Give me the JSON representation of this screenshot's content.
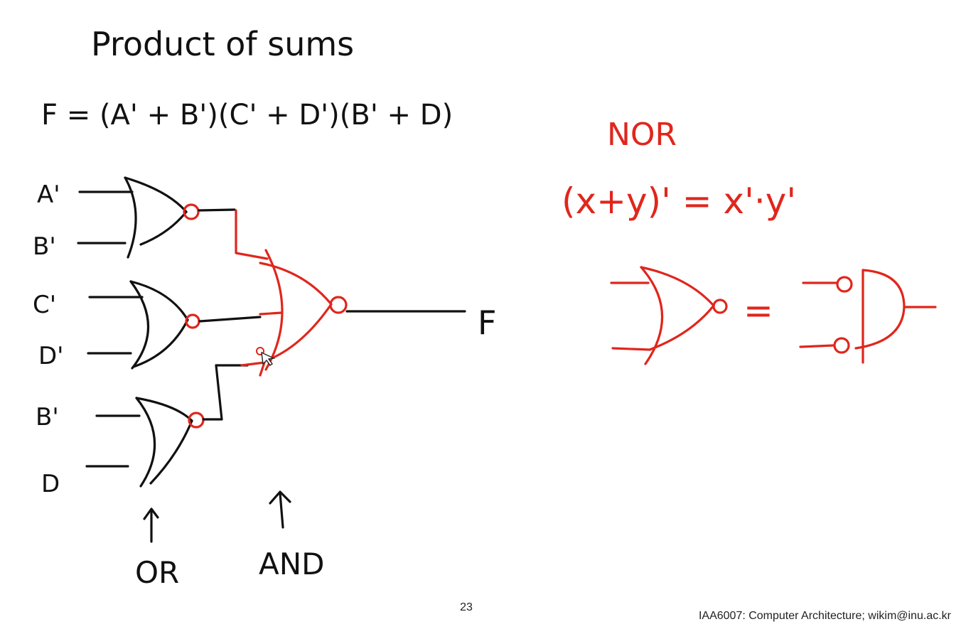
{
  "slide": {
    "title": "Product of sums",
    "equation": "F = (A' + B')(C' + D')(B' + D)",
    "input_labels": [
      "A'",
      "B'",
      "C'",
      "D'",
      "B'",
      "D"
    ],
    "output_label": "F",
    "stage_labels": {
      "or": "OR",
      "and": "AND"
    },
    "nor_title": "NOR",
    "nor_identity": "(x+y)' = x'·y'",
    "equals_sign": "=",
    "page_number": "23",
    "footer": "IAA6007: Computer Architecture; wikim@inu.ac.kr"
  },
  "colors": {
    "ink": "#111111",
    "annotation": "#e0261c",
    "background": "#ffffff"
  }
}
